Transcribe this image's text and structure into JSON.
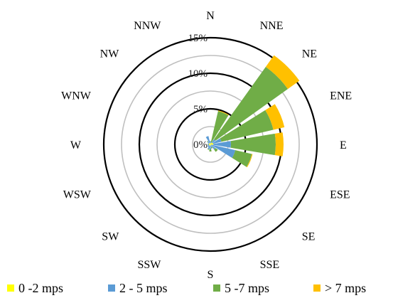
{
  "chart_data": {
    "type": "wind_rose",
    "directions": [
      "N",
      "NNE",
      "NE",
      "ENE",
      "E",
      "ESE",
      "SE",
      "SSE",
      "S",
      "SSW",
      "SW",
      "WSW",
      "W",
      "WNW",
      "NW",
      "NNW"
    ],
    "radial_ticks": [
      "0%",
      "5%",
      "10%",
      "15%"
    ],
    "radial_max": 15,
    "series": [
      {
        "name": "0 -2 mps",
        "color": "#ffff00",
        "values": [
          0.2,
          0.1,
          0.3,
          0.4,
          0.4,
          0.1,
          0.1,
          0.1,
          0.2,
          0.2,
          0.2,
          0.2,
          0.2,
          0.2,
          0.2,
          0.2
        ]
      },
      {
        "name": "2 - 5 mps",
        "color": "#5b9bd5",
        "values": [
          0.3,
          0.2,
          0.6,
          1.2,
          2.5,
          3.5,
          0.8,
          0.3,
          0.5,
          0.5,
          0.3,
          0.2,
          0.1,
          0.1,
          0.3,
          1.0
        ]
      },
      {
        "name": "5 -7 mps",
        "color": "#70ad47",
        "values": [
          0.0,
          4.5,
          12.5,
          7.5,
          6.3,
          2.4,
          0.4,
          0.2,
          0.3,
          0.1,
          0.0,
          0.0,
          0.1,
          0.0,
          0.1,
          0.0
        ]
      },
      {
        "name": "> 7 mps",
        "color": "#ffc000",
        "values": [
          0.0,
          0.1,
          2.0,
          1.6,
          1.1,
          0.1,
          0.0,
          0.0,
          0.0,
          0.0,
          0.0,
          0.0,
          0.0,
          0.0,
          0.0,
          0.0
        ]
      }
    ]
  }
}
